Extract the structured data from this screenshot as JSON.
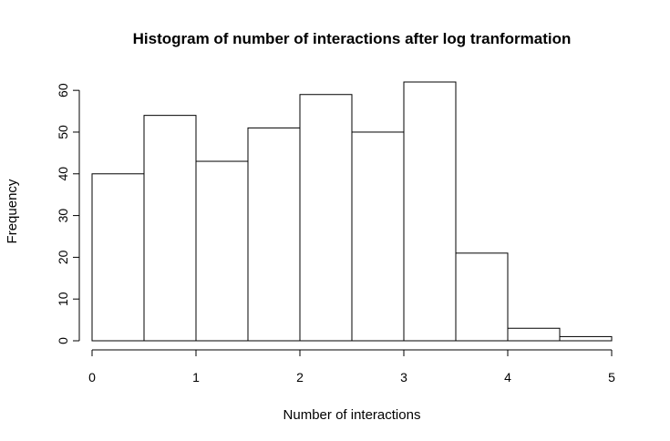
{
  "chart_data": {
    "type": "bar",
    "title": "Histogram of number of interactions after log tranformation",
    "xlabel": "Number of interactions",
    "ylabel": "Frequency",
    "bin_edges": [
      0,
      0.5,
      1,
      1.5,
      2,
      2.5,
      3,
      3.5,
      4,
      4.5,
      5
    ],
    "values": [
      40,
      54,
      43,
      51,
      59,
      50,
      62,
      21,
      3,
      1
    ],
    "xlim": [
      0,
      5
    ],
    "ylim": [
      0,
      62
    ],
    "x_ticks": [
      "0",
      "1",
      "2",
      "3",
      "4",
      "5"
    ],
    "y_ticks": [
      "0",
      "10",
      "20",
      "30",
      "40",
      "50",
      "60"
    ],
    "grid": false,
    "legend": "none"
  }
}
